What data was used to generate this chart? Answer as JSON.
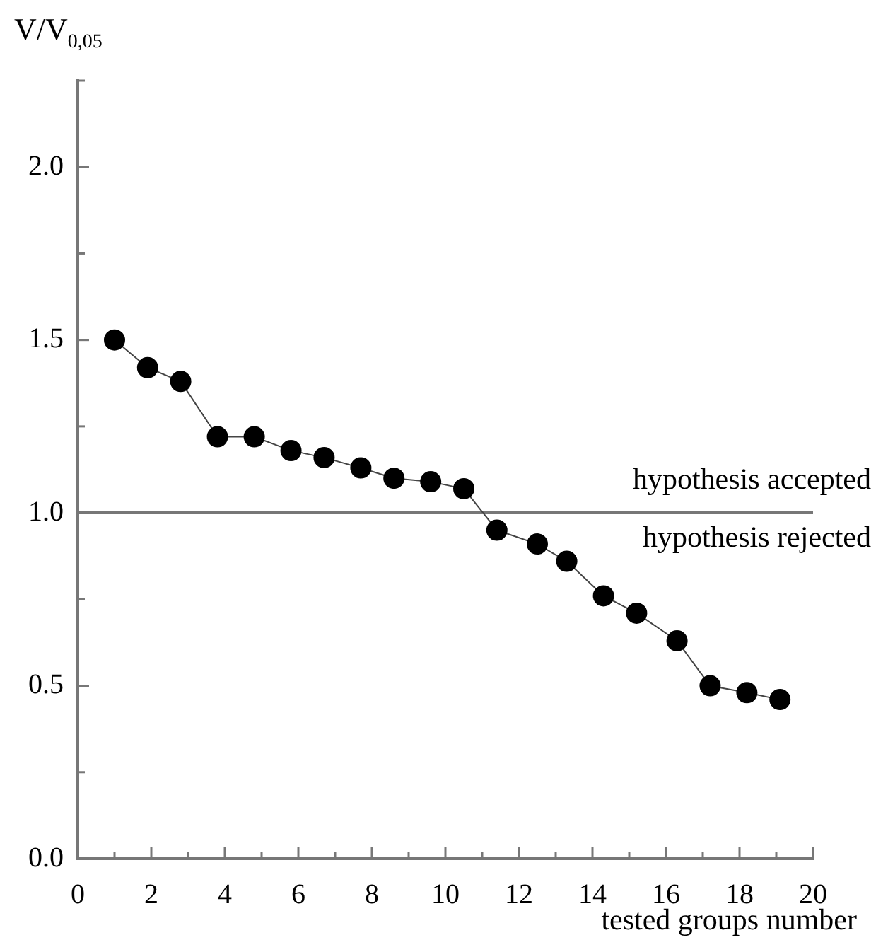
{
  "chart_data": {
    "type": "line",
    "xlabel": "tested groups number",
    "ylabel": "V/V$_{0,05}$",
    "x": [
      1,
      1.9,
      2.8,
      3.8,
      4.8,
      5.8,
      6.7,
      7.7,
      8.6,
      9.6,
      10.5,
      11.4,
      12.5,
      13.3,
      14.3,
      15.2,
      16.3,
      17.2,
      18.2,
      19.1
    ],
    "series": [
      {
        "color": "#000000",
        "values": [
          1.5,
          1.42,
          1.38,
          1.22,
          1.22,
          1.18,
          1.16,
          1.13,
          1.1,
          1.09,
          1.07,
          0.95,
          0.91,
          0.86,
          0.76,
          0.71,
          0.63,
          0.5,
          0.48,
          0.46
        ]
      }
    ],
    "xlim": [
      0,
      20
    ],
    "xticks": [
      0,
      {
        "value": 1,
        "label": null
      },
      2,
      {
        "value": 3,
        "label": null
      },
      4,
      {
        "value": 5,
        "label": null
      },
      6,
      {
        "value": 7,
        "label": null
      },
      8,
      {
        "value": 9,
        "label": null
      },
      10,
      {
        "value": 11,
        "label": null
      },
      12,
      {
        "value": 13,
        "label": null
      },
      14,
      {
        "value": 15,
        "label": null
      },
      16,
      {
        "value": 17,
        "label": null
      },
      18,
      {
        "value": 19,
        "label": null
      },
      20
    ],
    "ylim": [
      0,
      2.25
    ],
    "yticks": [
      {
        "value": 0,
        "label": "0.0"
      },
      {
        "value": 0.25,
        "label": null
      },
      {
        "value": 0.5,
        "label": "0.5"
      },
      {
        "value": 0.75,
        "label": null
      },
      {
        "value": 1,
        "label": "1.0"
      },
      {
        "value": 1.25,
        "label": null
      },
      {
        "value": 1.5,
        "label": "1.5"
      },
      {
        "value": 1.75,
        "label": null
      },
      {
        "value": 2,
        "label": "2.0"
      },
      {
        "value": 2.25,
        "label": null
      }
    ],
    "ref_lines": [
      {
        "axis": "y",
        "value": 1,
        "color": "#777777"
      }
    ],
    "annotations": [
      "hypothesis accepted",
      "hypothesis rejected"
    ],
    "marker": "circle",
    "line_style": "solid",
    "grid": false,
    "legend": false
  }
}
